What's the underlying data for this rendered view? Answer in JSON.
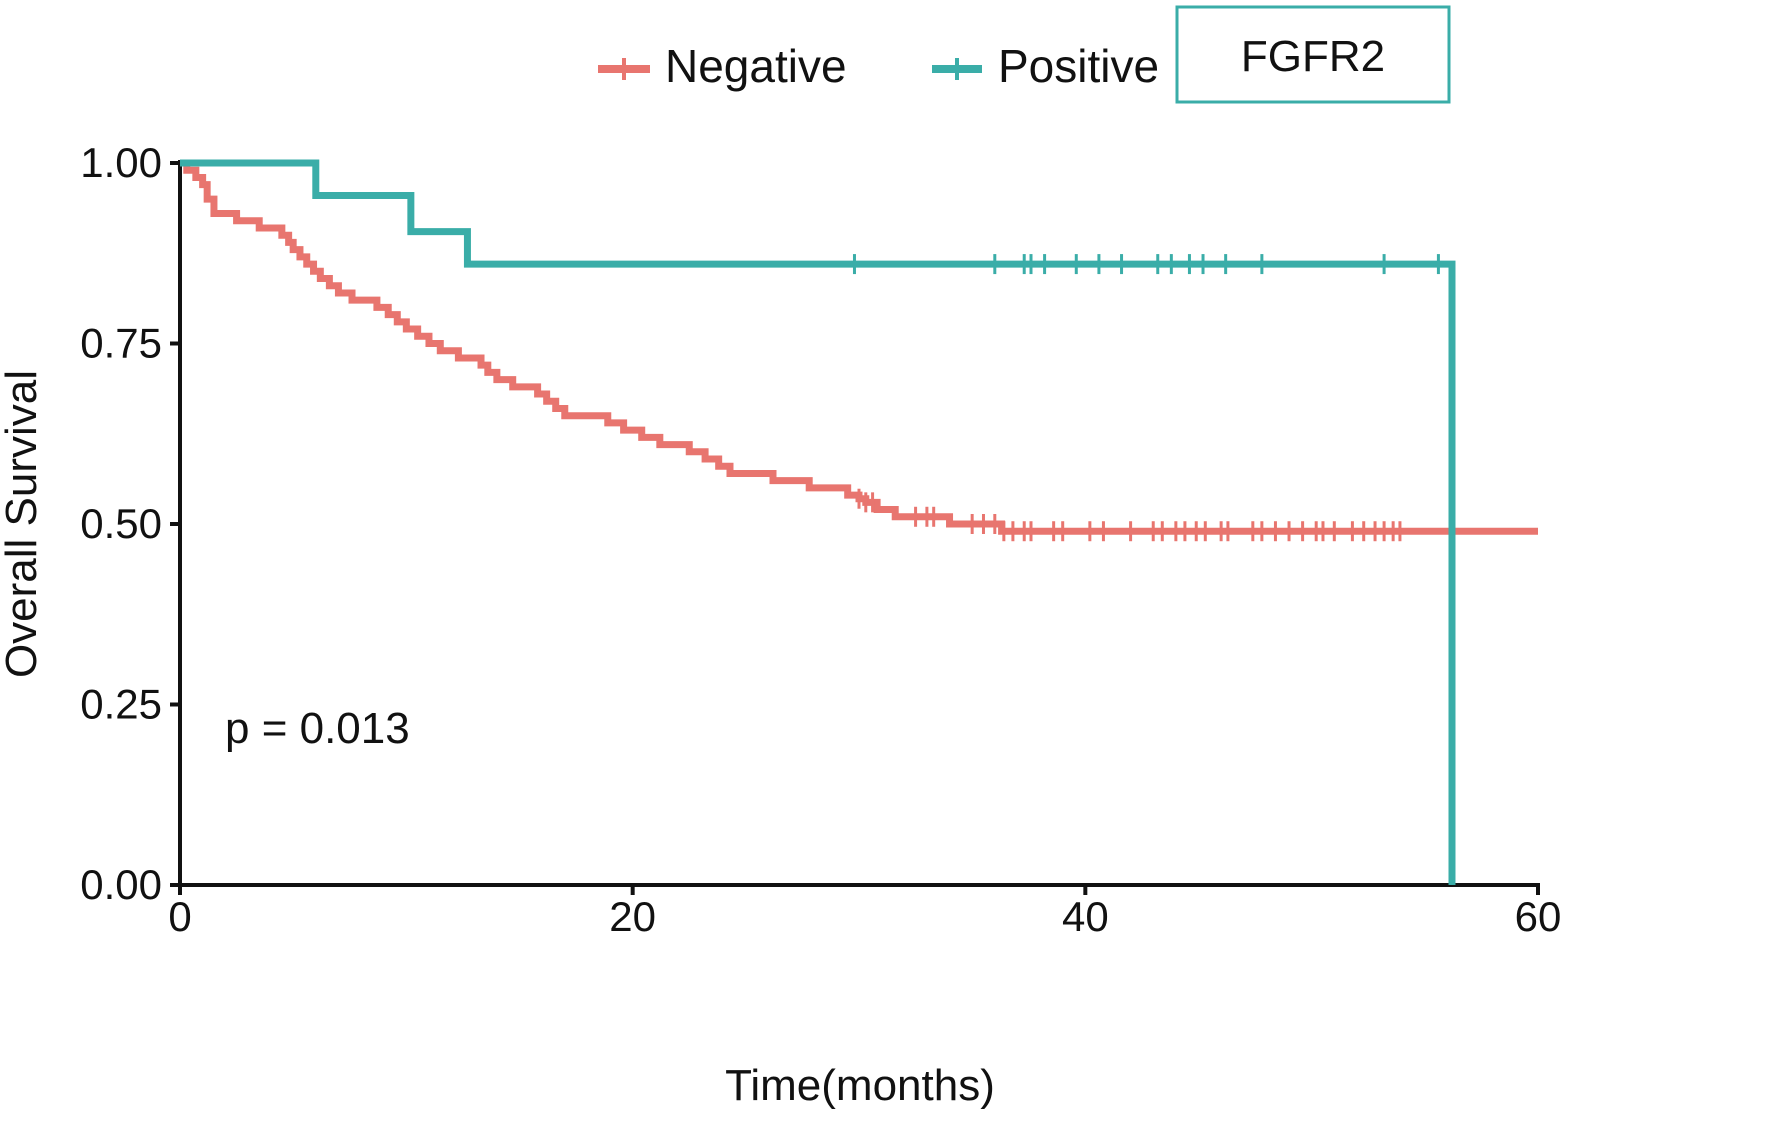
{
  "chart_data": {
    "type": "line",
    "subtype": "kaplan-meier",
    "title": "",
    "xlabel": "Time(months)",
    "ylabel": "Overall Survival",
    "xlim": [
      0,
      60
    ],
    "ylim": [
      0,
      1
    ],
    "xticks": [
      0,
      20,
      40,
      60
    ],
    "yticks": [
      0.0,
      0.25,
      0.5,
      0.75,
      1.0
    ],
    "xtick_labels": [
      "0",
      "20",
      "40",
      "60"
    ],
    "ytick_labels": [
      "0.00",
      "0.25",
      "0.50",
      "0.75",
      "1.00"
    ],
    "grid": false,
    "legend_position": "top",
    "strata_label": "FGFR2",
    "annotation": "p = 0.013",
    "series": [
      {
        "name": "Negative",
        "color": "#E8756F",
        "steps": [
          [
            0,
            1.0
          ],
          [
            0.3,
            0.99
          ],
          [
            0.7,
            0.98
          ],
          [
            1.0,
            0.97
          ],
          [
            1.2,
            0.95
          ],
          [
            1.5,
            0.93
          ],
          [
            2.5,
            0.92
          ],
          [
            3.5,
            0.91
          ],
          [
            4.5,
            0.9
          ],
          [
            4.8,
            0.89
          ],
          [
            5.0,
            0.88
          ],
          [
            5.3,
            0.87
          ],
          [
            5.6,
            0.86
          ],
          [
            5.9,
            0.85
          ],
          [
            6.2,
            0.84
          ],
          [
            6.6,
            0.83
          ],
          [
            7.0,
            0.82
          ],
          [
            7.6,
            0.81
          ],
          [
            8.7,
            0.8
          ],
          [
            9.2,
            0.79
          ],
          [
            9.6,
            0.78
          ],
          [
            10.0,
            0.77
          ],
          [
            10.5,
            0.76
          ],
          [
            11.0,
            0.75
          ],
          [
            11.5,
            0.74
          ],
          [
            12.3,
            0.73
          ],
          [
            13.3,
            0.72
          ],
          [
            13.6,
            0.71
          ],
          [
            14.0,
            0.7
          ],
          [
            14.7,
            0.69
          ],
          [
            15.8,
            0.68
          ],
          [
            16.2,
            0.67
          ],
          [
            16.6,
            0.66
          ],
          [
            17.0,
            0.65
          ],
          [
            18.9,
            0.64
          ],
          [
            19.6,
            0.63
          ],
          [
            20.4,
            0.62
          ],
          [
            21.2,
            0.61
          ],
          [
            22.5,
            0.6
          ],
          [
            23.2,
            0.59
          ],
          [
            23.8,
            0.58
          ],
          [
            24.3,
            0.57
          ],
          [
            26.2,
            0.56
          ],
          [
            27.8,
            0.55
          ],
          [
            29.5,
            0.54
          ],
          [
            30.0,
            0.535
          ],
          [
            30.3,
            0.53
          ],
          [
            30.8,
            0.52
          ],
          [
            31.6,
            0.51
          ],
          [
            34.0,
            0.5
          ],
          [
            36.3,
            0.49
          ]
        ],
        "end_x": 60,
        "censor_times": [
          30.0,
          30.3,
          30.6,
          32.5,
          33.0,
          33.3,
          35.0,
          35.5,
          36.0,
          36.4,
          36.8,
          37.3,
          37.6,
          38.6,
          39.0,
          40.2,
          40.8,
          42.0,
          43.0,
          43.4,
          44.0,
          44.4,
          44.9,
          45.3,
          46.0,
          46.3,
          47.4,
          47.8,
          48.4,
          49.0,
          49.6,
          50.2,
          50.5,
          51.0,
          51.8,
          52.3,
          52.8,
          53.2,
          53.6,
          53.9
        ]
      },
      {
        "name": "Positive",
        "color": "#3AADA8",
        "steps": [
          [
            0,
            1.0
          ],
          [
            6.0,
            0.955
          ],
          [
            10.2,
            0.905
          ],
          [
            12.7,
            0.86
          ],
          [
            56.2,
            0.0
          ]
        ],
        "end_x": 56.2,
        "censor_times": [
          29.8,
          36.0,
          37.3,
          37.6,
          38.2,
          39.6,
          40.6,
          41.6,
          43.2,
          43.8,
          44.6,
          45.2,
          46.2,
          47.8,
          53.2,
          55.6
        ]
      }
    ]
  }
}
